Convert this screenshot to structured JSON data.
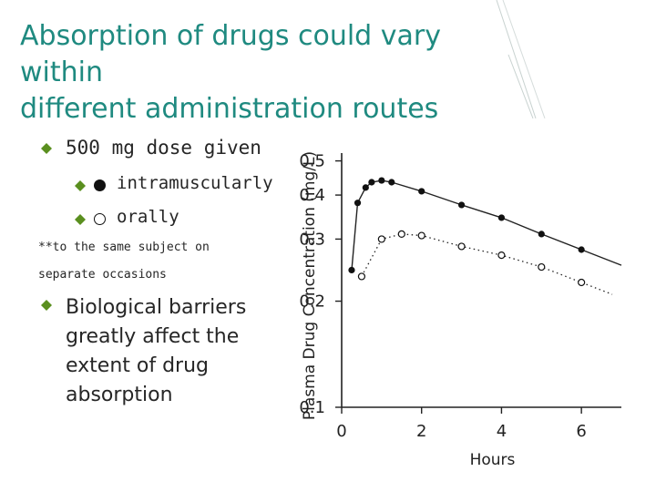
{
  "slide": {
    "title_line1": "Absorption of drugs could vary within",
    "title_line2": "different administration routes",
    "accent_color": "#1f8a80",
    "bullet_color": "#5a8f1f",
    "bullet1": "500 mg dose given",
    "sub1": "intramuscularly",
    "sub2": "orally",
    "note_line1": "**to the same subject on",
    "note_line2": "separate occasions",
    "bullet2_lines": [
      "Biological barriers",
      "greatly affect the",
      "extent of drug",
      "absorption"
    ]
  },
  "chart_data": {
    "type": "line",
    "xlabel": "Hours",
    "ylabel": "Plasma Drug Concentration (mg/L)",
    "xlim": [
      0,
      7
    ],
    "ylim": [
      0.1,
      0.52
    ],
    "y_scale": "log",
    "xticks": [
      "0",
      "2",
      "4",
      "6"
    ],
    "xtick_values": [
      0,
      2,
      4,
      6
    ],
    "yticks": [
      "0.1",
      "0.2",
      "0.3",
      "0.4",
      "0.5"
    ],
    "ytick_values": [
      0.1,
      0.2,
      0.3,
      0.4,
      0.5
    ],
    "series": [
      {
        "marker": "filled-circle",
        "line": "solid",
        "x": [
          0.25,
          0.4,
          0.6,
          0.75,
          1.0,
          1.25,
          2.0,
          3.0,
          4.0,
          5.0,
          6.0
        ],
        "y": [
          0.245,
          0.38,
          0.42,
          0.435,
          0.44,
          0.435,
          0.41,
          0.375,
          0.345,
          0.31,
          0.28
        ]
      },
      {
        "marker": "open-circle",
        "line": "dotted",
        "x": [
          0.5,
          1.0,
          1.5,
          2.0,
          3.0,
          4.0,
          5.0,
          6.0
        ],
        "y": [
          0.235,
          0.3,
          0.31,
          0.307,
          0.286,
          0.27,
          0.25,
          0.226
        ]
      }
    ]
  }
}
